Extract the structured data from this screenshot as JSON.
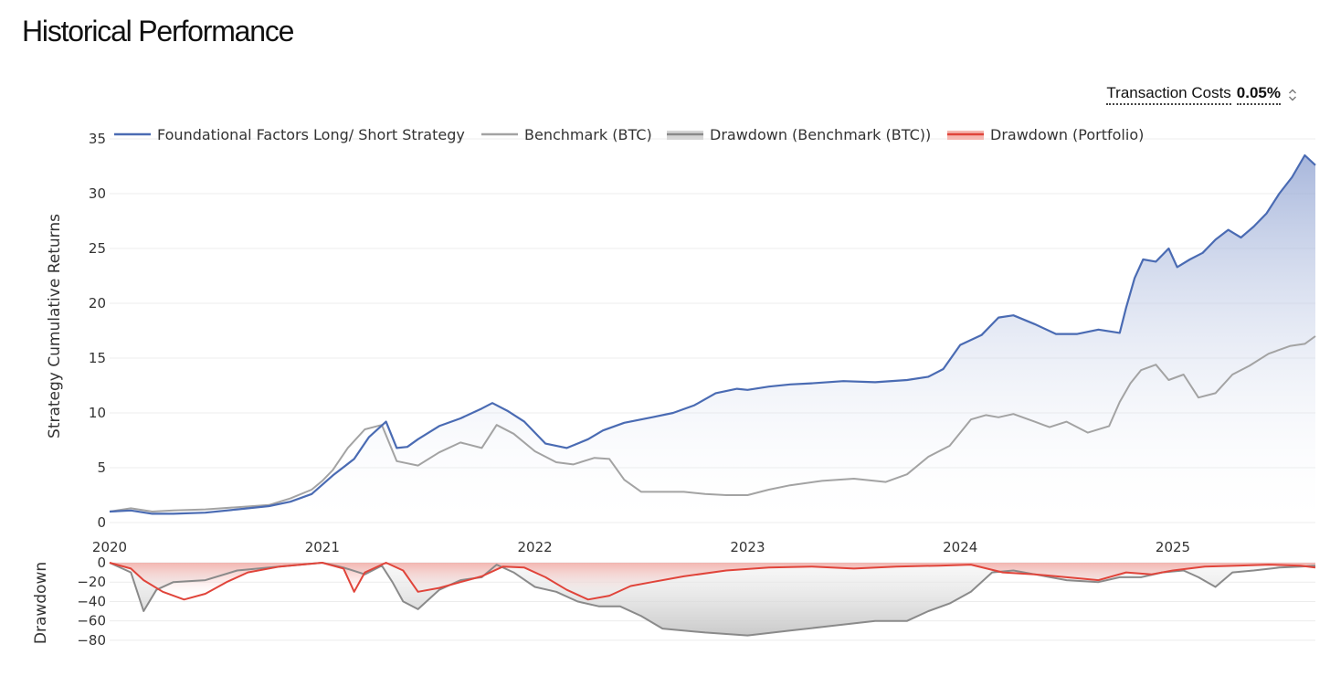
{
  "page": {
    "title": "Historical Performance"
  },
  "controls": {
    "transaction_costs_label": "Transaction Costs",
    "transaction_costs_value": "0.05%"
  },
  "colors": {
    "strategy": "#4a6bb3",
    "benchmark": "#a3a3a3",
    "drawdown_benchmark": "#8a8a8a",
    "drawdown_portfolio": "#e0443a",
    "strategy_fill_top": "#8b9fd0",
    "benchmark_dd_fill": "#d9d9d9",
    "portfolio_dd_fill": "#f3b3ad"
  },
  "chart_data": [
    {
      "type": "line",
      "title": "Historical Performance",
      "ylabel": "Strategy Cumulative Returns",
      "xlabel": "",
      "ylim": [
        0,
        36
      ],
      "xlim": [
        2020.0,
        2025.67
      ],
      "yticks": [
        "0",
        "5",
        "10",
        "15",
        "20",
        "25",
        "30",
        "35"
      ],
      "xticks": [
        "2020",
        "2021",
        "2022",
        "2023",
        "2024",
        "2025"
      ],
      "legend": [
        "Foundational Factors Long/ Short Strategy",
        "Benchmark (BTC)",
        "Drawdown (Benchmark (BTC))",
        "Drawdown (Portfolio)"
      ],
      "legend_position": "top-left",
      "series": [
        {
          "name": "Foundational Factors Long/ Short Strategy",
          "x": [
            2020.0,
            2020.1,
            2020.2,
            2020.3,
            2020.45,
            2020.6,
            2020.75,
            2020.85,
            2020.95,
            2021.05,
            2021.15,
            2021.22,
            2021.3,
            2021.35,
            2021.4,
            2021.45,
            2021.55,
            2021.65,
            2021.75,
            2021.8,
            2021.87,
            2021.95,
            2022.05,
            2022.15,
            2022.25,
            2022.32,
            2022.42,
            2022.55,
            2022.65,
            2022.75,
            2022.85,
            2022.95,
            2023.0,
            2023.1,
            2023.2,
            2023.3,
            2023.45,
            2023.6,
            2023.75,
            2023.85,
            2023.92,
            2024.0,
            2024.1,
            2024.18,
            2024.25,
            2024.35,
            2024.45,
            2024.55,
            2024.65,
            2024.75,
            2024.78,
            2024.82,
            2024.86,
            2024.92,
            2024.98,
            2025.02,
            2025.08,
            2025.14,
            2025.2,
            2025.26,
            2025.32,
            2025.38,
            2025.44,
            2025.5,
            2025.56,
            2025.62,
            2025.67
          ],
          "values": [
            1.0,
            1.1,
            0.8,
            0.8,
            0.9,
            1.2,
            1.5,
            1.9,
            2.6,
            4.3,
            5.8,
            7.8,
            9.2,
            6.8,
            6.9,
            7.6,
            8.8,
            9.5,
            10.4,
            10.9,
            10.2,
            9.2,
            7.2,
            6.8,
            7.6,
            8.4,
            9.1,
            9.6,
            10.0,
            10.7,
            11.8,
            12.2,
            12.1,
            12.4,
            12.6,
            12.7,
            12.9,
            12.8,
            13.0,
            13.3,
            14.0,
            16.2,
            17.1,
            18.7,
            18.9,
            18.1,
            17.2,
            17.2,
            17.6,
            17.3,
            19.6,
            22.3,
            24.0,
            23.8,
            25.0,
            23.3,
            24.0,
            24.6,
            25.8,
            26.7,
            26.0,
            27.0,
            28.2,
            30.0,
            31.5,
            33.5,
            32.6
          ]
        },
        {
          "name": "Benchmark (BTC)",
          "x": [
            2020.0,
            2020.1,
            2020.2,
            2020.3,
            2020.45,
            2020.6,
            2020.75,
            2020.85,
            2020.95,
            2021.0,
            2021.05,
            2021.12,
            2021.2,
            2021.28,
            2021.35,
            2021.45,
            2021.55,
            2021.65,
            2021.75,
            2021.82,
            2021.9,
            2022.0,
            2022.1,
            2022.18,
            2022.28,
            2022.35,
            2022.42,
            2022.5,
            2022.6,
            2022.7,
            2022.8,
            2022.9,
            2023.0,
            2023.1,
            2023.2,
            2023.35,
            2023.5,
            2023.65,
            2023.75,
            2023.85,
            2023.95,
            2024.05,
            2024.12,
            2024.18,
            2024.25,
            2024.35,
            2024.42,
            2024.5,
            2024.6,
            2024.7,
            2024.75,
            2024.8,
            2024.85,
            2024.92,
            2024.98,
            2025.05,
            2025.12,
            2025.2,
            2025.28,
            2025.36,
            2025.45,
            2025.55,
            2025.62,
            2025.67
          ],
          "values": [
            1.0,
            1.3,
            1.0,
            1.1,
            1.2,
            1.4,
            1.6,
            2.2,
            3.0,
            3.8,
            4.8,
            6.8,
            8.5,
            8.9,
            5.6,
            5.2,
            6.4,
            7.3,
            6.8,
            8.9,
            8.1,
            6.5,
            5.5,
            5.3,
            5.9,
            5.8,
            3.9,
            2.8,
            2.8,
            2.8,
            2.6,
            2.5,
            2.5,
            3.0,
            3.4,
            3.8,
            4.0,
            3.7,
            4.4,
            6.0,
            7.0,
            9.4,
            9.8,
            9.6,
            9.9,
            9.2,
            8.7,
            9.2,
            8.2,
            8.8,
            11.0,
            12.7,
            13.9,
            14.4,
            13.0,
            13.5,
            11.4,
            11.8,
            13.5,
            14.3,
            15.4,
            16.1,
            16.3,
            17.0
          ]
        }
      ]
    },
    {
      "type": "area",
      "ylabel": "Drawdown",
      "xlabel": "",
      "ylim": [
        -82,
        0
      ],
      "xlim": [
        2020.0,
        2025.67
      ],
      "yticks": [
        "0",
        "−20",
        "−40",
        "−60",
        "−80"
      ],
      "series": [
        {
          "name": "Drawdown (Benchmark (BTC))",
          "x": [
            2020.0,
            2020.1,
            2020.16,
            2020.22,
            2020.3,
            2020.45,
            2020.6,
            2020.75,
            2020.9,
            2021.0,
            2021.1,
            2021.2,
            2021.28,
            2021.33,
            2021.38,
            2021.45,
            2021.55,
            2021.65,
            2021.75,
            2021.82,
            2021.9,
            2022.0,
            2022.1,
            2022.2,
            2022.3,
            2022.4,
            2022.5,
            2022.6,
            2022.8,
            2023.0,
            2023.2,
            2023.4,
            2023.6,
            2023.75,
            2023.85,
            2023.95,
            2024.05,
            2024.15,
            2024.25,
            2024.35,
            2024.5,
            2024.65,
            2024.75,
            2024.85,
            2024.95,
            2025.05,
            2025.12,
            2025.2,
            2025.28,
            2025.38,
            2025.5,
            2025.6,
            2025.67
          ],
          "values": [
            0,
            -10,
            -50,
            -28,
            -20,
            -18,
            -8,
            -5,
            -2,
            0,
            -5,
            -12,
            -3,
            -20,
            -40,
            -48,
            -28,
            -18,
            -15,
            -2,
            -10,
            -25,
            -30,
            -40,
            -45,
            -45,
            -55,
            -68,
            -72,
            -75,
            -70,
            -65,
            -60,
            -60,
            -50,
            -42,
            -30,
            -10,
            -8,
            -12,
            -18,
            -20,
            -15,
            -15,
            -10,
            -8,
            -15,
            -25,
            -10,
            -8,
            -5,
            -4,
            -3
          ]
        },
        {
          "name": "Drawdown (Portfolio)",
          "x": [
            2020.0,
            2020.1,
            2020.16,
            2020.25,
            2020.35,
            2020.45,
            2020.55,
            2020.65,
            2020.8,
            2020.9,
            2021.0,
            2021.1,
            2021.15,
            2021.2,
            2021.3,
            2021.38,
            2021.45,
            2021.55,
            2021.65,
            2021.75,
            2021.85,
            2021.95,
            2022.05,
            2022.15,
            2022.25,
            2022.35,
            2022.45,
            2022.55,
            2022.7,
            2022.9,
            2023.1,
            2023.3,
            2023.5,
            2023.7,
            2023.9,
            2024.05,
            2024.2,
            2024.35,
            2024.5,
            2024.65,
            2024.78,
            2024.9,
            2025.0,
            2025.15,
            2025.3,
            2025.45,
            2025.6,
            2025.67
          ],
          "values": [
            0,
            -6,
            -18,
            -30,
            -38,
            -32,
            -20,
            -10,
            -4,
            -2,
            0,
            -6,
            -30,
            -10,
            0,
            -8,
            -30,
            -26,
            -20,
            -14,
            -4,
            -5,
            -15,
            -28,
            -38,
            -34,
            -24,
            -20,
            -14,
            -8,
            -5,
            -4,
            -6,
            -4,
            -3,
            -2,
            -10,
            -12,
            -15,
            -18,
            -10,
            -12,
            -8,
            -4,
            -3,
            -2,
            -3,
            -5
          ]
        }
      ]
    }
  ]
}
